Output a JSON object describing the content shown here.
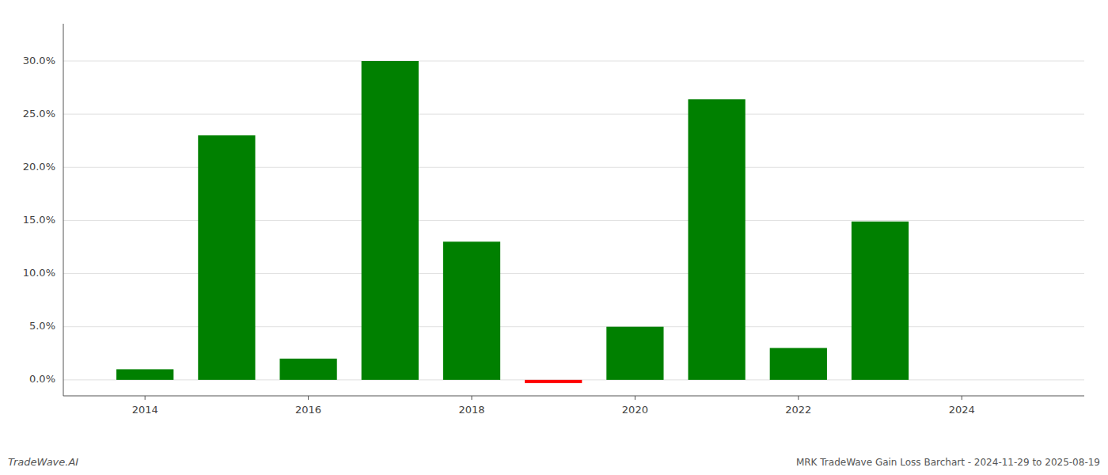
{
  "chart_data": {
    "type": "bar",
    "title": "MRK TradeWave Gain Loss Barchart - 2024-11-29 to 2025-08-19",
    "annotations": [
      {
        "text": "TradeWave.AI"
      }
    ],
    "x": [
      2014,
      2015,
      2016,
      2017,
      2018,
      2019,
      2020,
      2021,
      2022,
      2023,
      2024
    ],
    "values": [
      0.01,
      0.23,
      0.02,
      0.3,
      0.13,
      -0.003,
      0.05,
      0.264,
      0.03,
      0.149,
      0.0
    ],
    "colors": [
      "#008000",
      "#008000",
      "#008000",
      "#008000",
      "#008000",
      "#ff0000",
      "#008000",
      "#008000",
      "#008000",
      "#008000",
      "#008000"
    ],
    "xlim": [
      2013.0,
      2025.5
    ],
    "xticks": [
      2014,
      2016,
      2018,
      2020,
      2022,
      2024
    ],
    "ylim": [
      -0.015,
      0.335
    ],
    "yticks": [
      {
        "value": 0.0,
        "label": "0.0%"
      },
      {
        "value": 0.05,
        "label": "5.0%"
      },
      {
        "value": 0.1,
        "label": "10.0%"
      },
      {
        "value": 0.15,
        "label": "15.0%"
      },
      {
        "value": 0.2,
        "label": "20.0%"
      },
      {
        "value": 0.25,
        "label": "25.0%"
      },
      {
        "value": 0.3,
        "label": "30.0%"
      }
    ],
    "grid": true
  }
}
